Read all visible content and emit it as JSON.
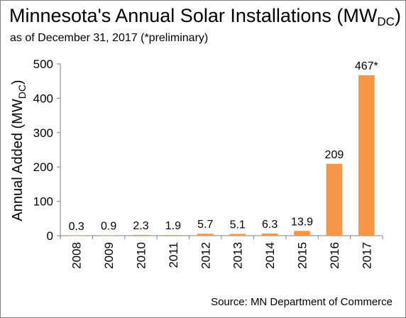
{
  "title": {
    "main": "Minnesota's Annual Solar Installations (MW",
    "sub": "DC",
    "close": ")"
  },
  "subtitle": "as of December 31, 2017 (*preliminary)",
  "source": "Source: MN Department of Commerce",
  "colors": {
    "bar": "#f79646",
    "axis": "#7f7f7f"
  },
  "chart_data": {
    "type": "bar",
    "title": "Minnesota's Annual Solar Installations (MWDC)",
    "subtitle": "as of December 31, 2017 (*preliminary)",
    "categories": [
      "2008",
      "2009",
      "2010",
      "2011",
      "2012",
      "2013",
      "2014",
      "2015",
      "2016",
      "2017"
    ],
    "values": [
      0.3,
      0.9,
      2.3,
      1.9,
      5.7,
      5.1,
      6.3,
      13.9,
      209,
      467
    ],
    "data_labels": [
      "0.3",
      "0.9",
      "2.3",
      "1.9",
      "5.7",
      "5.1",
      "6.3",
      "13.9",
      "209",
      "467*"
    ],
    "ylabel_main": "Annual Added (MW",
    "ylabel_sub": "DC",
    "ylabel_close": ")",
    "xlabel": "",
    "ylim": [
      0,
      500
    ],
    "yticks": [
      0,
      100,
      200,
      300,
      400,
      500
    ],
    "grid": false,
    "legend": "none"
  }
}
